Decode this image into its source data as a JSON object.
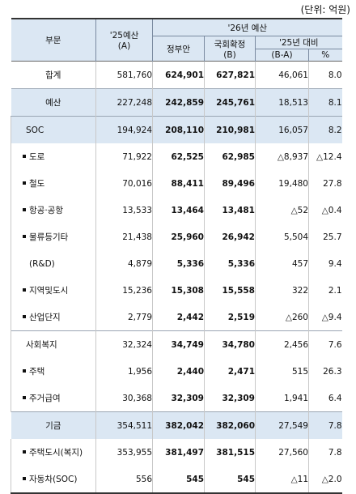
{
  "unit_note": "(단위: 억원)",
  "header": {
    "col_name": "부문",
    "col_a_line1": "'25예산",
    "col_a_line2": "(A)",
    "col_b_group": "'26년 예산",
    "col_b1": "정부안",
    "col_b2_line1": "국회확정",
    "col_b2_line2": "(B)",
    "col_cmp_group": "'25년 대비",
    "col_diff": "(B-A)",
    "col_pct": "%"
  },
  "rows": [
    {
      "name": "합계",
      "a": "581,760",
      "b1": "624,901",
      "b2": "627,821",
      "diff": "46,061",
      "pct": "8.0",
      "style": "total"
    },
    {
      "name": "예산",
      "a": "227,248",
      "b1": "242,859",
      "b2": "245,761",
      "diff": "18,513",
      "pct": "8.1",
      "style": "hl"
    },
    {
      "name": "SOC",
      "a": "194,924",
      "b1": "208,110",
      "b2": "210,981",
      "diff": "16,057",
      "pct": "8.2",
      "style": "sub-hl"
    },
    {
      "name": "도로",
      "a": "71,922",
      "b1": "62,525",
      "b2": "62,985",
      "diff": "△8,937",
      "pct": "△12.4",
      "style": "item"
    },
    {
      "name": "철도",
      "a": "70,016",
      "b1": "88,411",
      "b2": "89,496",
      "diff": "19,480",
      "pct": "27.8",
      "style": "item"
    },
    {
      "name": "항공·공항",
      "a": "13,533",
      "b1": "13,464",
      "b2": "13,481",
      "diff": "△52",
      "pct": "△0.4",
      "style": "item"
    },
    {
      "name": "물류등기타",
      "a": "21,438",
      "b1": "25,960",
      "b2": "26,942",
      "diff": "5,504",
      "pct": "25.7",
      "style": "item"
    },
    {
      "name": "(R&D)",
      "a": "4,879",
      "b1": "5,336",
      "b2": "5,336",
      "diff": "457",
      "pct": "9.4",
      "style": "rd"
    },
    {
      "name": "지역및도시",
      "a": "15,236",
      "b1": "15,308",
      "b2": "15,558",
      "diff": "322",
      "pct": "2.1",
      "style": "item"
    },
    {
      "name": "산업단지",
      "a": "2,779",
      "b1": "2,442",
      "b2": "2,519",
      "diff": "△260",
      "pct": "△9.4",
      "style": "item"
    },
    {
      "name": "사회복지",
      "a": "32,324",
      "b1": "34,749",
      "b2": "34,780",
      "diff": "2,456",
      "pct": "7.6",
      "style": "sub"
    },
    {
      "name": "주택",
      "a": "1,956",
      "b1": "2,440",
      "b2": "2,471",
      "diff": "515",
      "pct": "26.3",
      "style": "item"
    },
    {
      "name": "주거급여",
      "a": "30,368",
      "b1": "32,309",
      "b2": "32,309",
      "diff": "1,941",
      "pct": "6.4",
      "style": "item"
    },
    {
      "name": "기금",
      "a": "354,511",
      "b1": "382,042",
      "b2": "382,060",
      "diff": "27,549",
      "pct": "7.8",
      "style": "hl"
    },
    {
      "name": "주택도시(복지)",
      "a": "353,955",
      "b1": "381,497",
      "b2": "381,515",
      "diff": "27,560",
      "pct": "7.8",
      "style": "item"
    },
    {
      "name": "자동차(SOC)",
      "a": "556",
      "b1": "545",
      "b2": "545",
      "diff": "△11",
      "pct": "△2.0",
      "style": "item"
    }
  ]
}
